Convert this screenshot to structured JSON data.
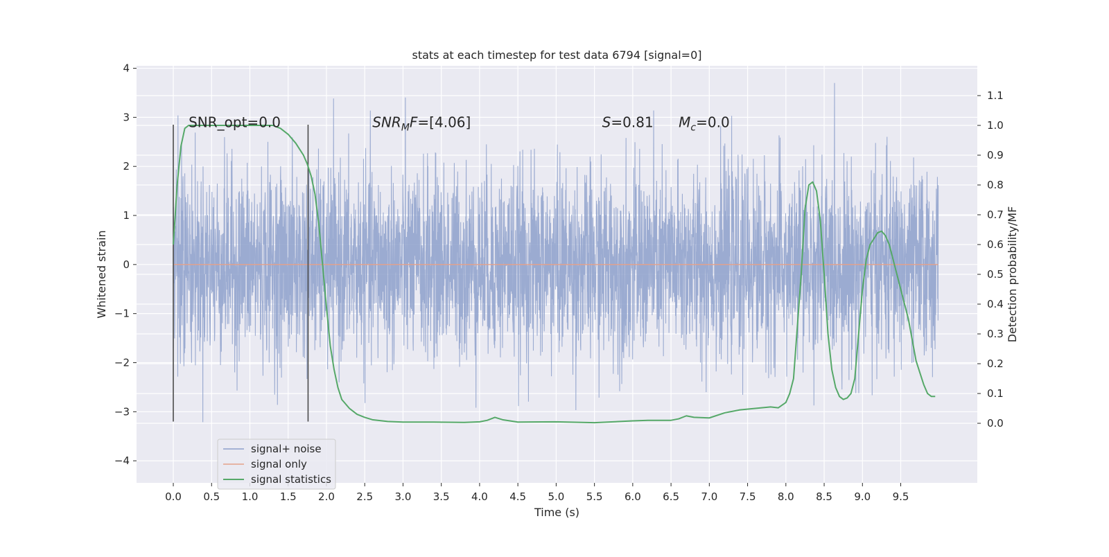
{
  "chart_data": {
    "type": "line",
    "title": "stats at each timestep for test data 6794 [signal=0]",
    "xlabel": "Time (s)",
    "ylabel_left": "Whitened strain",
    "ylabel_right": "Detection probability/MF",
    "xlim": [
      -0.48,
      10.5
    ],
    "ylim_left": [
      -4.45,
      4.05
    ],
    "ylim_right": [
      -0.2,
      1.2
    ],
    "x_ticks": [
      0.0,
      0.5,
      1.0,
      1.5,
      2.0,
      2.5,
      3.0,
      3.5,
      4.0,
      4.5,
      5.0,
      5.5,
      6.0,
      6.5,
      7.0,
      7.5,
      8.0,
      8.5,
      9.0,
      9.5
    ],
    "x_tick_labels": [
      "0.0",
      "0.5",
      "1.0",
      "1.5",
      "2.0",
      "2.5",
      "3.0",
      "3.5",
      "4.0",
      "4.5",
      "5.0",
      "5.5",
      "6.0",
      "6.5",
      "7.0",
      "7.5",
      "8.0",
      "8.5",
      "9.0",
      "9.5"
    ],
    "y_left_ticks": [
      -4,
      -3,
      -2,
      -1,
      0,
      1,
      2,
      3,
      4
    ],
    "y_left_tick_labels": [
      "−4",
      "−3",
      "−2",
      "−1",
      "0",
      "1",
      "2",
      "3",
      "4"
    ],
    "y_right_ticks": [
      0.0,
      0.1,
      0.2,
      0.3,
      0.4,
      0.5,
      0.6,
      0.7,
      0.8,
      0.9,
      1.0,
      1.1
    ],
    "y_right_tick_labels": [
      "0.0",
      "0.1",
      "0.2",
      "0.3",
      "0.4",
      "0.5",
      "0.6",
      "0.7",
      "0.8",
      "0.9",
      "1.0",
      "1.1"
    ],
    "grid": true,
    "legend_position": "lower-left",
    "series": [
      {
        "name": "signal+ noise",
        "axis": "left",
        "color": "#8da0cb",
        "x_range": [
          0.0,
          9.99
        ],
        "noise_std": 0.95,
        "y_range": [
          -4.05,
          3.7
        ]
      },
      {
        "name": "signal only",
        "axis": "left",
        "color": "#e5a189",
        "x": [
          0.0,
          9.99
        ],
        "y": [
          0.0,
          0.0
        ]
      },
      {
        "name": "signal statistics",
        "axis": "right",
        "color": "#55a868",
        "x": [
          0.0,
          0.05,
          0.1,
          0.15,
          0.2,
          0.3,
          0.5,
          0.7,
          0.9,
          1.0,
          1.2,
          1.3,
          1.4,
          1.5,
          1.6,
          1.65,
          1.7,
          1.75,
          1.8,
          1.85,
          1.9,
          1.95,
          2.0,
          2.05,
          2.1,
          2.15,
          2.2,
          2.3,
          2.4,
          2.5,
          2.6,
          2.8,
          3.0,
          3.4,
          3.8,
          4.0,
          4.1,
          4.2,
          4.3,
          4.5,
          5.0,
          5.5,
          6.0,
          6.2,
          6.5,
          6.6,
          6.7,
          6.8,
          7.0,
          7.2,
          7.4,
          7.6,
          7.8,
          7.9,
          8.0,
          8.05,
          8.1,
          8.2,
          8.25,
          8.3,
          8.35,
          8.4,
          8.45,
          8.5,
          8.55,
          8.6,
          8.65,
          8.7,
          8.75,
          8.8,
          8.85,
          8.9,
          8.95,
          9.0,
          9.05,
          9.1,
          9.15,
          9.2,
          9.25,
          9.3,
          9.35,
          9.4,
          9.45,
          9.5,
          9.55,
          9.6,
          9.65,
          9.7,
          9.75,
          9.8,
          9.85,
          9.9,
          9.95
        ],
        "y": [
          0.6,
          0.8,
          0.93,
          0.99,
          1.0,
          1.0,
          1.0,
          1.0,
          1.0,
          1.0,
          1.0,
          1.0,
          0.99,
          0.97,
          0.94,
          0.92,
          0.9,
          0.87,
          0.83,
          0.77,
          0.67,
          0.53,
          0.39,
          0.26,
          0.18,
          0.12,
          0.08,
          0.05,
          0.03,
          0.02,
          0.012,
          0.006,
          0.004,
          0.004,
          0.003,
          0.005,
          0.01,
          0.02,
          0.012,
          0.004,
          0.005,
          0.002,
          0.008,
          0.01,
          0.01,
          0.015,
          0.025,
          0.02,
          0.018,
          0.035,
          0.045,
          0.05,
          0.055,
          0.052,
          0.07,
          0.1,
          0.15,
          0.5,
          0.72,
          0.8,
          0.81,
          0.78,
          0.68,
          0.5,
          0.3,
          0.18,
          0.12,
          0.09,
          0.08,
          0.085,
          0.1,
          0.15,
          0.3,
          0.45,
          0.55,
          0.6,
          0.62,
          0.64,
          0.645,
          0.63,
          0.6,
          0.55,
          0.5,
          0.45,
          0.4,
          0.35,
          0.28,
          0.21,
          0.17,
          0.13,
          0.1,
          0.09,
          0.09
        ]
      }
    ],
    "markers": {
      "axis": "left",
      "color": "#4a4a4a",
      "x": [
        0.0,
        1.76
      ],
      "y_range": [
        -3.2,
        2.85
      ]
    },
    "annotations": [
      {
        "text": "SNR_opt=0.0",
        "x": 0.2,
        "y": 2.9
      },
      {
        "text": "SNR_MF=[4.06]",
        "x": 2.6,
        "y": 2.9
      },
      {
        "text": "S=0.81",
        "x": 5.6,
        "y": 2.9
      },
      {
        "text": "M_c=0.0",
        "x": 6.6,
        "y": 2.9
      }
    ]
  }
}
